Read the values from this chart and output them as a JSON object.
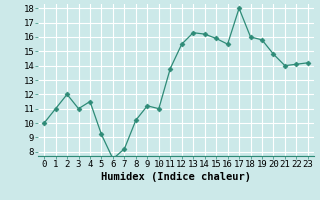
{
  "x": [
    0,
    1,
    2,
    3,
    4,
    5,
    6,
    7,
    8,
    9,
    10,
    11,
    12,
    13,
    14,
    15,
    16,
    17,
    18,
    19,
    20,
    21,
    22,
    23
  ],
  "y": [
    10,
    11,
    12,
    11,
    11.5,
    9.2,
    7.5,
    8.2,
    10.2,
    11.2,
    11.0,
    13.8,
    15.5,
    16.3,
    16.2,
    15.9,
    15.5,
    18.0,
    16.0,
    15.8,
    14.8,
    14.0,
    14.1,
    14.2
  ],
  "line_color": "#2e8b77",
  "marker": "D",
  "marker_size": 2.5,
  "bg_color": "#cce9e9",
  "grid_color": "#ffffff",
  "xlabel": "Humidex (Indice chaleur)",
  "ylim": [
    8,
    18
  ],
  "xlim": [
    0,
    23
  ],
  "yticks": [
    8,
    9,
    10,
    11,
    12,
    13,
    14,
    15,
    16,
    17,
    18
  ],
  "xticks": [
    0,
    1,
    2,
    3,
    4,
    5,
    6,
    7,
    8,
    9,
    10,
    11,
    12,
    13,
    14,
    15,
    16,
    17,
    18,
    19,
    20,
    21,
    22,
    23
  ],
  "xlabel_fontsize": 7.5,
  "tick_fontsize": 6.5
}
